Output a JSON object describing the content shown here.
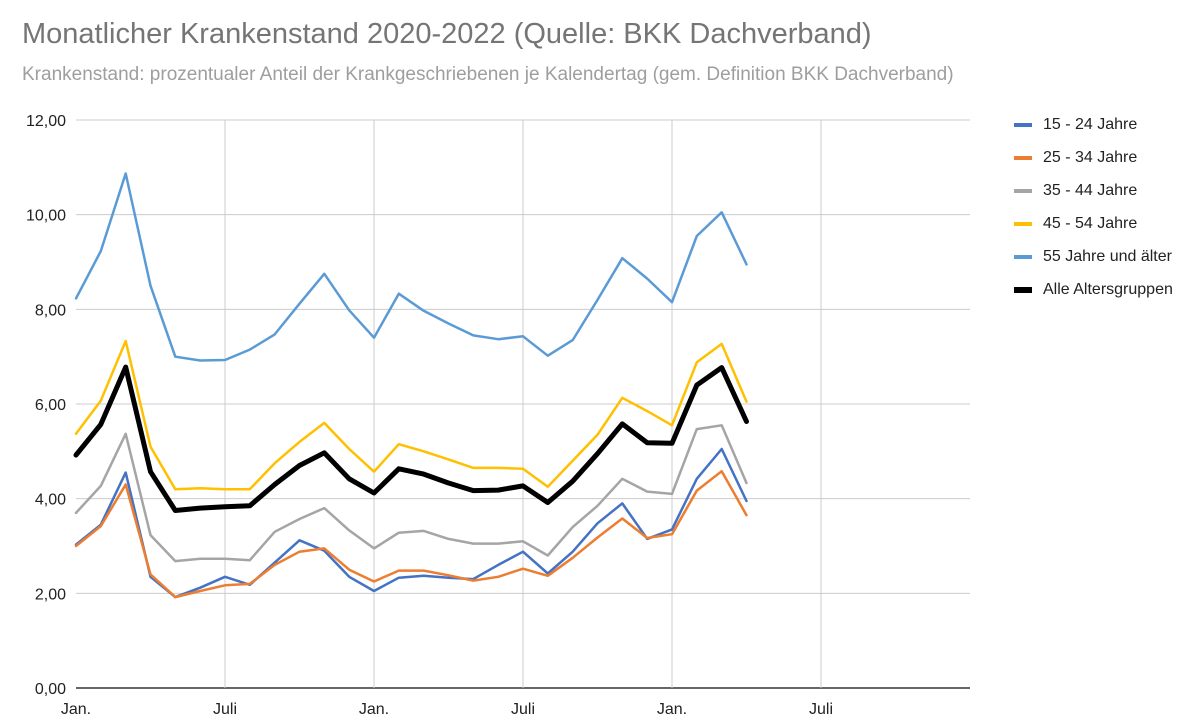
{
  "chart_data": {
    "type": "line",
    "title": "Monatlicher Krankenstand 2020-2022 (Quelle: BKK Dachverband)",
    "subtitle": "Krankenstand: prozentualer Anteil der Krankgeschriebenen je Kalendertag (gem. Definition BKK Dachverband)",
    "x_start": "2020-01",
    "x_range": [
      "2020-01",
      "2022-12"
    ],
    "x_ticks": [
      {
        "month": "2020-01",
        "label": "Jan."
      },
      {
        "month": "2020-07",
        "label": "Juli"
      },
      {
        "month": "2021-01",
        "label": "Jan."
      },
      {
        "month": "2021-07",
        "label": "Juli"
      },
      {
        "month": "2022-01",
        "label": "Jan."
      },
      {
        "month": "2022-07",
        "label": "Juli"
      }
    ],
    "ylim": [
      0,
      12
    ],
    "y_ticks": [
      {
        "value": 0,
        "label": "0,00"
      },
      {
        "value": 2,
        "label": "2,00"
      },
      {
        "value": 4,
        "label": "4,00"
      },
      {
        "value": 6,
        "label": "6,00"
      },
      {
        "value": 8,
        "label": "8,00"
      },
      {
        "value": 10,
        "label": "10,00"
      },
      {
        "value": 12,
        "label": "12,00"
      }
    ],
    "grid": true,
    "legend_position": "right",
    "series": [
      {
        "name": "15 - 24 Jahre",
        "color": "#4472c4",
        "bold": false,
        "values": [
          3.03,
          3.45,
          4.55,
          2.35,
          1.92,
          2.12,
          2.35,
          2.18,
          2.65,
          3.12,
          2.9,
          2.35,
          2.05,
          2.33,
          2.37,
          2.33,
          2.3,
          2.6,
          2.88,
          2.42,
          2.88,
          3.48,
          3.9,
          3.15,
          3.35,
          4.42,
          5.05,
          3.95
        ]
      },
      {
        "name": "25 - 34 Jahre",
        "color": "#ed7d31",
        "bold": false,
        "values": [
          3.0,
          3.42,
          4.3,
          2.4,
          1.92,
          2.05,
          2.17,
          2.2,
          2.6,
          2.88,
          2.95,
          2.5,
          2.25,
          2.48,
          2.48,
          2.38,
          2.27,
          2.35,
          2.52,
          2.37,
          2.75,
          3.18,
          3.58,
          3.17,
          3.25,
          4.17,
          4.58,
          3.65
        ]
      },
      {
        "name": "35 - 44 Jahre",
        "color": "#a5a5a5",
        "bold": false,
        "values": [
          3.7,
          4.27,
          5.37,
          3.23,
          2.68,
          2.73,
          2.73,
          2.7,
          3.3,
          3.57,
          3.8,
          3.33,
          2.95,
          3.28,
          3.32,
          3.15,
          3.05,
          3.05,
          3.1,
          2.8,
          3.4,
          3.85,
          4.42,
          4.15,
          4.1,
          5.47,
          5.55,
          4.33
        ]
      },
      {
        "name": "45 - 54 Jahre",
        "color": "#ffc000",
        "bold": false,
        "values": [
          5.37,
          6.07,
          7.33,
          5.1,
          4.2,
          4.22,
          4.2,
          4.2,
          4.75,
          5.2,
          5.6,
          5.05,
          4.57,
          5.15,
          5.0,
          4.83,
          4.65,
          4.65,
          4.63,
          4.25,
          4.8,
          5.35,
          6.13,
          5.85,
          5.55,
          6.88,
          7.27,
          6.05
        ]
      },
      {
        "name": "55 Jahre und älter",
        "color": "#5b9bd5",
        "bold": false,
        "values": [
          8.23,
          9.23,
          10.87,
          8.5,
          7.0,
          6.92,
          6.93,
          7.15,
          7.47,
          8.12,
          8.75,
          7.98,
          7.4,
          8.33,
          7.97,
          7.7,
          7.45,
          7.37,
          7.43,
          7.02,
          7.35,
          8.2,
          9.08,
          8.65,
          8.15,
          9.55,
          10.05,
          8.95
        ]
      },
      {
        "name": "Alle Altersgruppen",
        "color": "#000000",
        "bold": true,
        "values": [
          4.92,
          5.57,
          6.78,
          4.57,
          3.75,
          3.8,
          3.83,
          3.85,
          4.3,
          4.7,
          4.97,
          4.42,
          4.12,
          4.63,
          4.52,
          4.33,
          4.17,
          4.18,
          4.27,
          3.92,
          4.37,
          4.95,
          5.58,
          5.18,
          5.17,
          6.4,
          6.77,
          5.63
        ]
      }
    ]
  }
}
